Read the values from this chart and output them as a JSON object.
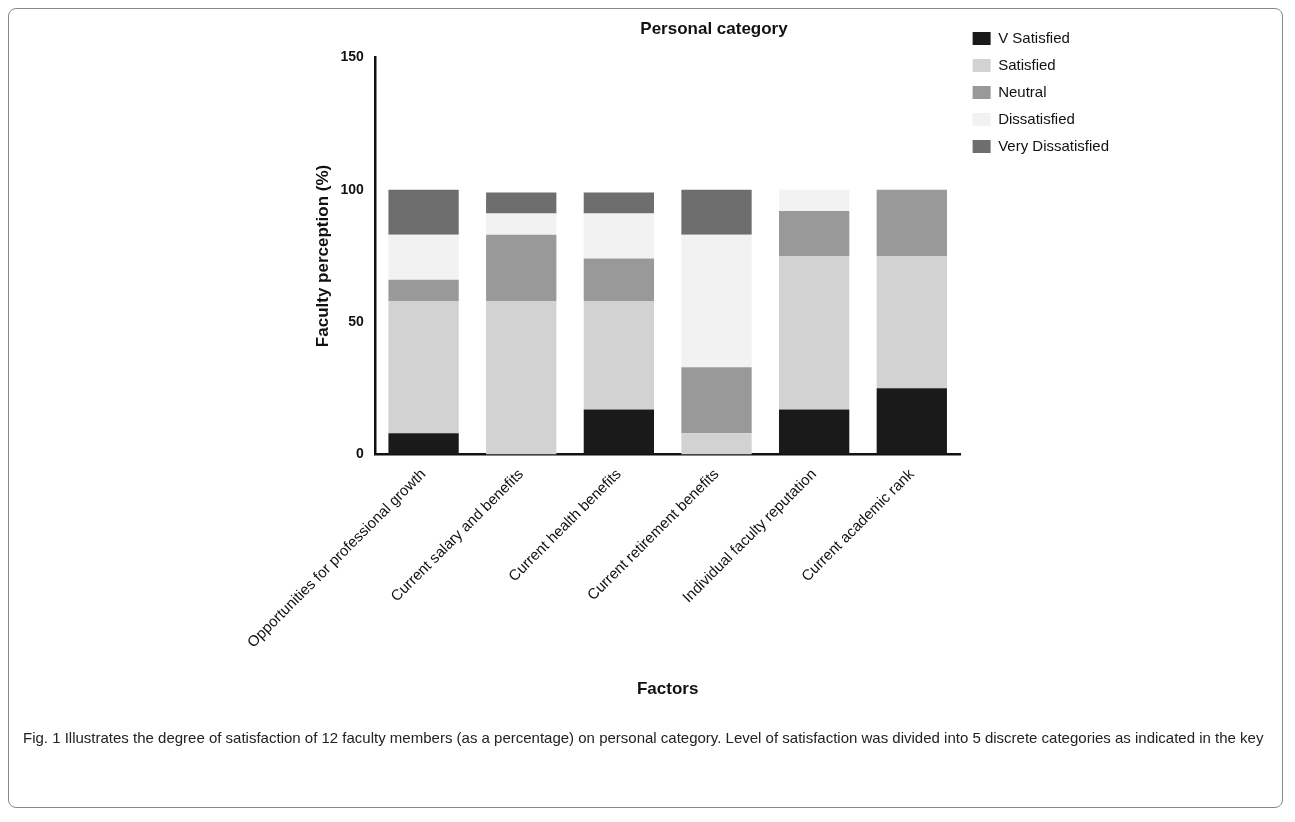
{
  "chart_data": {
    "type": "bar",
    "title": "Personal category",
    "xlabel": "Factors",
    "ylabel": "Faculty perception (%)",
    "categories": [
      "Opportunities for professional growth",
      "Current salary and benefits",
      "Current health benefits",
      "Current retirement benefits",
      "Individual faculty reputation",
      "Current academic rank"
    ],
    "stacked": true,
    "ylim": [
      0,
      150
    ],
    "yticks": [
      0,
      50,
      100,
      150
    ],
    "legend": "top right",
    "series": [
      {
        "name": "V Satisfied",
        "color": "#1a1a1a",
        "values": [
          8,
          0,
          17,
          0,
          17,
          25
        ]
      },
      {
        "name": "Satisfied",
        "color": "#d2d2d2",
        "values": [
          50,
          58,
          41,
          8,
          58,
          50
        ]
      },
      {
        "name": "Neutral",
        "color": "#999999",
        "values": [
          8,
          25,
          16,
          25,
          17,
          25
        ]
      },
      {
        "name": "Dissatisfied",
        "color": "#f2f2f2",
        "values": [
          17,
          8,
          17,
          50,
          8,
          0
        ]
      },
      {
        "name": "Very Dissatisfied",
        "color": "#6e6e6e",
        "values": [
          17,
          8,
          8,
          17,
          0,
          0
        ]
      }
    ],
    "annotations": [
      "Fig. 1 Illustrates the degree of satisfaction of 12 faculty members (as a percentage) on personal category. Level of satisfaction was divided into 5 discrete categories as indicated in the key"
    ]
  }
}
